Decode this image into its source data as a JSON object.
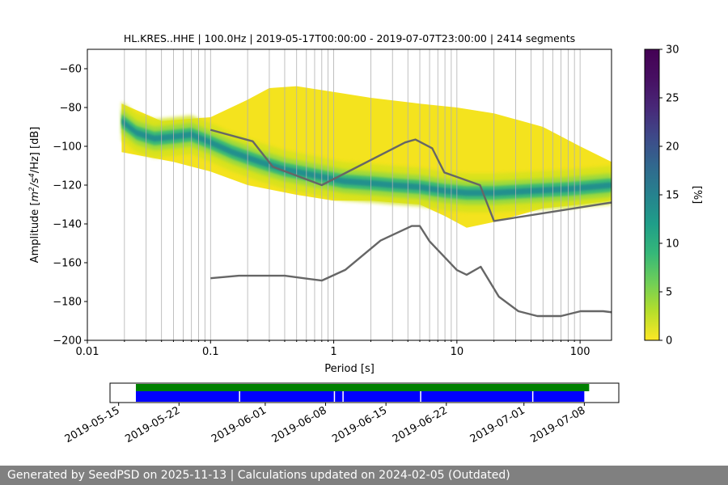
{
  "footer_text": "Generated by SeedPSD on 2025-11-13 | Calculations updated on 2024-02-05 (Outdated)",
  "chart_data": [
    {
      "type": "heatmap",
      "title": "HL.KRES..HHE | 100.0Hz | 2019-05-17T00:00:00 - 2019-07-07T23:00:00 | 2414 segments",
      "xlabel": "Period [s]",
      "ylabel_parts": {
        "pre": "Amplitude [",
        "base1": "m",
        "sup1": "2",
        "mid": "/s",
        "sup2": "4",
        "post": "/Hz] [dB]"
      },
      "x_scale": "log",
      "xlim": [
        0.01,
        180
      ],
      "ylim": [
        -200,
        -50
      ],
      "x_ticks": [
        {
          "value": 0.01,
          "label": "0.01"
        },
        {
          "value": 0.1,
          "label": "0.1"
        },
        {
          "value": 1,
          "label": "1"
        },
        {
          "value": 10,
          "label": "10"
        },
        {
          "value": 100,
          "label": "100"
        }
      ],
      "y_ticks": [
        {
          "value": -60,
          "label": "−60"
        },
        {
          "value": -80,
          "label": "−80"
        },
        {
          "value": -100,
          "label": "−100"
        },
        {
          "value": -120,
          "label": "−120"
        },
        {
          "value": -140,
          "label": "−140"
        },
        {
          "value": -160,
          "label": "−160"
        },
        {
          "value": -180,
          "label": "−180"
        },
        {
          "value": -200,
          "label": "−200"
        }
      ],
      "grid": "vertical, every decade subdivision (1–9 × 10^n)",
      "colorbar": {
        "label": "[%]",
        "range": [
          0,
          30
        ],
        "colormap": "viridis_r",
        "ticks": [
          {
            "value": 0,
            "label": "0"
          },
          {
            "value": 5,
            "label": "5"
          },
          {
            "value": 10,
            "label": "10"
          },
          {
            "value": 15,
            "label": "15"
          },
          {
            "value": 20,
            "label": "20"
          },
          {
            "value": 25,
            "label": "25"
          },
          {
            "value": 30,
            "label": "30"
          }
        ]
      },
      "density_mode": [
        {
          "x": 0.019,
          "y": -87
        },
        {
          "x": 0.025,
          "y": -93
        },
        {
          "x": 0.035,
          "y": -96
        },
        {
          "x": 0.05,
          "y": -95
        },
        {
          "x": 0.07,
          "y": -94
        },
        {
          "x": 0.1,
          "y": -98
        },
        {
          "x": 0.15,
          "y": -103
        },
        {
          "x": 0.25,
          "y": -108
        },
        {
          "x": 0.4,
          "y": -112
        },
        {
          "x": 0.7,
          "y": -115
        },
        {
          "x": 1.2,
          "y": -118
        },
        {
          "x": 2,
          "y": -119
        },
        {
          "x": 3,
          "y": -120
        },
        {
          "x": 5,
          "y": -121
        },
        {
          "x": 8,
          "y": -123
        },
        {
          "x": 12,
          "y": -124
        },
        {
          "x": 20,
          "y": -124
        },
        {
          "x": 40,
          "y": -123
        },
        {
          "x": 80,
          "y": -122
        },
        {
          "x": 180,
          "y": -120
        }
      ],
      "density_upper": [
        {
          "x": 0.019,
          "y": -78
        },
        {
          "x": 0.04,
          "y": -87
        },
        {
          "x": 0.1,
          "y": -85
        },
        {
          "x": 0.2,
          "y": -76
        },
        {
          "x": 0.3,
          "y": -70
        },
        {
          "x": 0.5,
          "y": -69
        },
        {
          "x": 1,
          "y": -72
        },
        {
          "x": 2,
          "y": -75
        },
        {
          "x": 5,
          "y": -78
        },
        {
          "x": 10,
          "y": -80
        },
        {
          "x": 20,
          "y": -83
        },
        {
          "x": 50,
          "y": -90
        },
        {
          "x": 100,
          "y": -100
        },
        {
          "x": 180,
          "y": -108
        }
      ],
      "density_lower": [
        {
          "x": 0.019,
          "y": -103
        },
        {
          "x": 0.05,
          "y": -108
        },
        {
          "x": 0.1,
          "y": -113
        },
        {
          "x": 0.2,
          "y": -120
        },
        {
          "x": 0.5,
          "y": -125
        },
        {
          "x": 1,
          "y": -128
        },
        {
          "x": 2,
          "y": -128
        },
        {
          "x": 5,
          "y": -130
        },
        {
          "x": 8,
          "y": -136
        },
        {
          "x": 12,
          "y": -142
        },
        {
          "x": 20,
          "y": -139
        },
        {
          "x": 50,
          "y": -132
        },
        {
          "x": 100,
          "y": -130
        },
        {
          "x": 180,
          "y": -128
        }
      ],
      "series": [
        {
          "role": "high noise model",
          "color": "#666666",
          "points": [
            {
              "x": 0.1,
              "y": -91.5
            },
            {
              "x": 0.22,
              "y": -97.4
            },
            {
              "x": 0.32,
              "y": -110.5
            },
            {
              "x": 0.8,
              "y": -120
            },
            {
              "x": 3.8,
              "y": -98
            },
            {
              "x": 4.6,
              "y": -96.5
            },
            {
              "x": 6.3,
              "y": -101
            },
            {
              "x": 7.9,
              "y": -113.5
            },
            {
              "x": 15.4,
              "y": -120
            },
            {
              "x": 20,
              "y": -138.5
            },
            {
              "x": 354.8,
              "y": -126
            }
          ]
        },
        {
          "role": "low noise model",
          "color": "#666666",
          "points": [
            {
              "x": 0.1,
              "y": -168
            },
            {
              "x": 0.17,
              "y": -166.7
            },
            {
              "x": 0.4,
              "y": -166.7
            },
            {
              "x": 0.8,
              "y": -169.2
            },
            {
              "x": 1.24,
              "y": -163.7
            },
            {
              "x": 2.4,
              "y": -148.6
            },
            {
              "x": 4.3,
              "y": -141.1
            },
            {
              "x": 5,
              "y": -141.1
            },
            {
              "x": 6,
              "y": -149
            },
            {
              "x": 10,
              "y": -163.8
            },
            {
              "x": 12,
              "y": -166.2
            },
            {
              "x": 15.6,
              "y": -162.1
            },
            {
              "x": 21.9,
              "y": -177.5
            },
            {
              "x": 31.6,
              "y": -185
            },
            {
              "x": 45,
              "y": -187.5
            },
            {
              "x": 70,
              "y": -187.5
            },
            {
              "x": 101,
              "y": -185
            },
            {
              "x": 154,
              "y": -185
            },
            {
              "x": 328,
              "y": -187.5
            }
          ]
        }
      ]
    },
    {
      "type": "bar",
      "role": "data availability timeline",
      "x_scale": "date",
      "xlim": [
        "2019-05-14",
        "2019-07-12"
      ],
      "x_ticks": [
        {
          "value": "2019-05-15",
          "label": "2019-05-15"
        },
        {
          "value": "2019-05-22",
          "label": "2019-05-22"
        },
        {
          "value": "2019-06-01",
          "label": "2019-06-01"
        },
        {
          "value": "2019-06-08",
          "label": "2019-06-08"
        },
        {
          "value": "2019-06-15",
          "label": "2019-06-15"
        },
        {
          "value": "2019-06-22",
          "label": "2019-06-22"
        },
        {
          "value": "2019-07-01",
          "label": "2019-07-01"
        },
        {
          "value": "2019-07-08",
          "label": "2019-07-08"
        }
      ],
      "bars": [
        {
          "color": "#008000",
          "start": "2019-05-17",
          "end": "2019-07-08"
        },
        {
          "color": "#0000ff",
          "start": "2019-05-17",
          "end": "2019-07-08",
          "gaps": [
            "2019-05-29",
            "2019-06-09",
            "2019-06-10",
            "2019-06-19",
            "2019-07-02"
          ]
        }
      ]
    }
  ]
}
